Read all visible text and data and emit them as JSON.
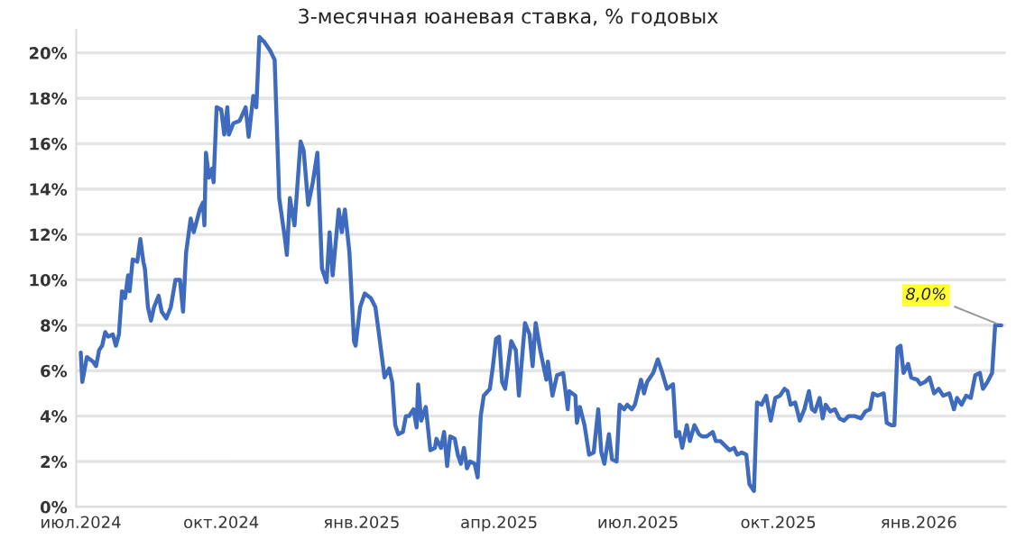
{
  "chart_data": {
    "type": "line",
    "title": "3-месячная юаневая ставка, % годовых",
    "x": [
      "2024-07-01",
      "2024-07-02",
      "2024-07-05",
      "2024-07-09",
      "2024-07-11",
      "2024-07-13",
      "2024-07-15",
      "2024-07-17",
      "2024-07-19",
      "2024-07-22",
      "2024-07-24",
      "2024-07-26",
      "2024-07-28",
      "2024-07-30",
      "2024-08-01",
      "2024-08-02",
      "2024-08-04",
      "2024-08-07",
      "2024-08-09",
      "2024-08-11",
      "2024-08-12",
      "2024-08-14",
      "2024-08-16",
      "2024-08-18",
      "2024-08-21",
      "2024-08-23",
      "2024-08-26",
      "2024-08-29",
      "2024-09-01",
      "2024-09-04",
      "2024-09-06",
      "2024-09-08",
      "2024-09-11",
      "2024-09-13",
      "2024-09-17",
      "2024-09-19",
      "2024-09-20",
      "2024-09-21",
      "2024-09-23",
      "2024-09-25",
      "2024-09-26",
      "2024-09-28",
      "2024-10-01",
      "2024-10-03",
      "2024-10-05",
      "2024-10-06",
      "2024-10-09",
      "2024-10-13",
      "2024-10-17",
      "2024-10-19",
      "2024-10-22",
      "2024-10-24",
      "2024-10-26",
      "2024-10-29",
      "2024-11-02",
      "2024-11-05",
      "2024-11-08",
      "2024-11-12",
      "2024-11-13",
      "2024-11-15",
      "2024-11-18",
      "2024-11-22",
      "2024-11-24",
      "2024-11-27",
      "2024-11-30",
      "2024-12-03",
      "2024-12-06",
      "2024-12-09",
      "2024-12-11",
      "2024-12-13",
      "2024-12-17",
      "2024-12-19",
      "2024-12-21",
      "2024-12-24",
      "2024-12-27",
      "2024-12-28",
      "2024-12-31",
      "2025-01-03",
      "2025-01-07",
      "2025-01-10",
      "2025-01-12",
      "2025-01-16",
      "2025-01-19",
      "2025-01-21",
      "2025-01-23",
      "2025-01-25",
      "2025-01-28",
      "2025-01-30",
      "2025-02-01",
      "2025-02-04",
      "2025-02-06",
      "2025-02-07",
      "2025-02-09",
      "2025-02-12",
      "2025-02-15",
      "2025-02-18",
      "2025-02-19",
      "2025-02-22",
      "2025-02-24",
      "2025-02-26",
      "2025-02-28",
      "2025-03-03",
      "2025-03-05",
      "2025-03-07",
      "2025-03-09",
      "2025-03-11",
      "2025-03-13",
      "2025-03-16",
      "2025-03-18",
      "2025-03-20",
      "2025-03-22",
      "2025-03-26",
      "2025-03-28",
      "2025-03-30",
      "2025-04-01",
      "2025-04-03",
      "2025-04-05",
      "2025-04-09",
      "2025-04-12",
      "2025-04-14",
      "2025-04-18",
      "2025-04-21",
      "2025-04-23",
      "2025-04-25",
      "2025-04-28",
      "2025-05-02",
      "2025-05-03",
      "2025-05-06",
      "2025-05-09",
      "2025-05-13",
      "2025-05-16",
      "2025-05-17",
      "2025-05-21",
      "2025-05-22",
      "2025-05-24",
      "2025-05-27",
      "2025-05-30",
      "2025-06-02",
      "2025-06-05",
      "2025-06-07",
      "2025-06-09",
      "2025-06-12",
      "2025-06-14",
      "2025-06-17",
      "2025-06-19",
      "2025-06-22",
      "2025-06-24",
      "2025-06-27",
      "2025-06-29",
      "2025-07-03",
      "2025-07-05",
      "2025-07-07",
      "2025-07-11",
      "2025-07-14",
      "2025-07-17",
      "2025-07-20",
      "2025-07-24",
      "2025-07-26",
      "2025-07-28",
      "2025-07-30",
      "2025-08-02",
      "2025-08-04",
      "2025-08-07",
      "2025-08-10",
      "2025-08-12",
      "2025-08-15",
      "2025-08-19",
      "2025-08-21",
      "2025-08-24",
      "2025-08-27",
      "2025-08-30",
      "2025-09-02",
      "2025-09-04",
      "2025-09-07",
      "2025-09-10",
      "2025-09-12",
      "2025-09-15",
      "2025-09-17",
      "2025-09-20",
      "2025-09-23",
      "2025-09-26",
      "2025-09-29",
      "2025-10-02",
      "2025-10-05",
      "2025-10-07",
      "2025-10-09",
      "2025-10-12",
      "2025-10-15",
      "2025-10-18",
      "2025-10-21",
      "2025-10-23",
      "2025-10-25",
      "2025-10-28",
      "2025-10-30",
      "2025-11-01",
      "2025-11-04",
      "2025-11-07",
      "2025-11-10",
      "2025-11-13",
      "2025-11-16",
      "2025-11-20",
      "2025-11-24",
      "2025-11-27",
      "2025-11-30",
      "2025-12-02",
      "2025-12-05",
      "2025-12-09",
      "2025-12-11",
      "2025-12-14",
      "2025-12-16",
      "2025-12-18",
      "2025-12-20",
      "2025-12-22",
      "2025-12-25",
      "2025-12-27",
      "2025-12-31",
      "2026-01-02",
      "2026-01-05",
      "2026-01-08",
      "2026-01-11",
      "2026-01-14",
      "2026-01-17",
      "2026-01-21",
      "2026-01-24",
      "2026-01-26",
      "2026-01-29",
      "2026-02-01",
      "2026-02-04",
      "2026-02-07",
      "2026-02-10",
      "2026-02-12",
      "2026-02-15",
      "2026-02-18",
      "2026-02-20",
      "2026-02-24"
    ],
    "series": [
      {
        "color": "#3f6bbf",
        "values": [
          6.8,
          5.5,
          6.6,
          6.4,
          6.2,
          6.9,
          7.1,
          7.7,
          7.5,
          7.6,
          7.1,
          7.6,
          9.5,
          9.2,
          10.2,
          9.5,
          10.9,
          10.8,
          11.8,
          10.8,
          10.5,
          8.8,
          8.2,
          8.8,
          9.3,
          8.6,
          8.3,
          8.8,
          10.0,
          10.0,
          8.6,
          11.2,
          12.7,
          12.1,
          13.1,
          13.4,
          12.4,
          15.6,
          14.5,
          14.9,
          14.3,
          17.6,
          17.5,
          16.4,
          17.6,
          16.4,
          16.9,
          17.0,
          17.6,
          16.3,
          18.1,
          17.6,
          20.7,
          20.5,
          20.1,
          19.7,
          13.6,
          11.7,
          11.1,
          13.6,
          12.4,
          16.1,
          15.7,
          13.3,
          14.3,
          15.6,
          10.5,
          9.9,
          12.1,
          10.2,
          13.1,
          12.1,
          13.1,
          11.2,
          7.3,
          7.1,
          8.8,
          9.4,
          9.2,
          8.8,
          7.8,
          5.7,
          6.1,
          5.5,
          3.6,
          3.2,
          3.3,
          4.0,
          4.0,
          4.3,
          3.5,
          5.4,
          3.8,
          4.4,
          2.5,
          2.6,
          3.0,
          2.6,
          3.3,
          1.8,
          3.1,
          3.0,
          2.3,
          1.9,
          2.6,
          1.7,
          2.0,
          1.9,
          1.3,
          4.0,
          4.9,
          5.2,
          6.2,
          7.4,
          7.5,
          5.5,
          5.2,
          7.3,
          6.9,
          4.9,
          8.1,
          7.6,
          6.2,
          8.1,
          6.9,
          5.6,
          6.4,
          4.9,
          5.8,
          5.9,
          4.3,
          5.1,
          4.9,
          3.7,
          4.4,
          3.6,
          2.3,
          2.4,
          4.3,
          2.4,
          1.9,
          3.2,
          2.1,
          2.0,
          4.5,
          4.3,
          4.5,
          4.3,
          4.5,
          5.6,
          5.0,
          5.5,
          5.9,
          6.5,
          5.9,
          5.2,
          5.4,
          3.1,
          3.3,
          2.6,
          3.6,
          2.9,
          3.6,
          3.2,
          3.1,
          3.1,
          3.3,
          2.9,
          2.9,
          2.7,
          2.5,
          2.6,
          2.3,
          2.4,
          2.3,
          1.0,
          0.7,
          4.6,
          4.5,
          4.9,
          3.8,
          4.8,
          4.9,
          5.2,
          5.1,
          4.5,
          4.6,
          3.8,
          4.3,
          5.1,
          4.3,
          4.2,
          4.8,
          3.9,
          4.5,
          4.2,
          4.3,
          3.9,
          3.8,
          4.0,
          4.0,
          3.9,
          4.2,
          4.3,
          5.0,
          4.9,
          5.0,
          3.7,
          3.6,
          3.6,
          7.0,
          7.1,
          5.9,
          6.3,
          5.7,
          5.6,
          5.4,
          5.5,
          5.7,
          5.0,
          5.2,
          4.9,
          5.0,
          4.3,
          4.8,
          4.5,
          4.9,
          4.8,
          5.8,
          5.9,
          5.2,
          5.5,
          5.9,
          8.0,
          8.0
        ]
      }
    ],
    "xlim": [
      "2024-06-28",
      "2026-02-27"
    ],
    "xticks": [
      {
        "value": "2024-07-01",
        "label": "июл.2024"
      },
      {
        "value": "2024-10-01",
        "label": "окт.2024"
      },
      {
        "value": "2025-01-01",
        "label": "янв.2025"
      },
      {
        "value": "2025-04-01",
        "label": "апр.2025"
      },
      {
        "value": "2025-07-01",
        "label": "июл.2025"
      },
      {
        "value": "2025-10-01",
        "label": "окт.2025"
      },
      {
        "value": "2026-01-01",
        "label": "янв.2026"
      }
    ],
    "ylim": [
      0,
      21
    ],
    "yticks": [
      {
        "value": 0,
        "label": "0%"
      },
      {
        "value": 2,
        "label": "2%"
      },
      {
        "value": 4,
        "label": "4%"
      },
      {
        "value": 6,
        "label": "6%"
      },
      {
        "value": 8,
        "label": "8%"
      },
      {
        "value": 10,
        "label": "10%"
      },
      {
        "value": 12,
        "label": "12%"
      },
      {
        "value": 14,
        "label": "14%"
      },
      {
        "value": 16,
        "label": "16%"
      },
      {
        "value": 18,
        "label": "18%"
      },
      {
        "value": 20,
        "label": "20%"
      }
    ],
    "annotations": [
      {
        "text": "8,0%",
        "x": "2026-02-24",
        "y": 8.0
      }
    ],
    "grid": "y",
    "legend": false
  }
}
